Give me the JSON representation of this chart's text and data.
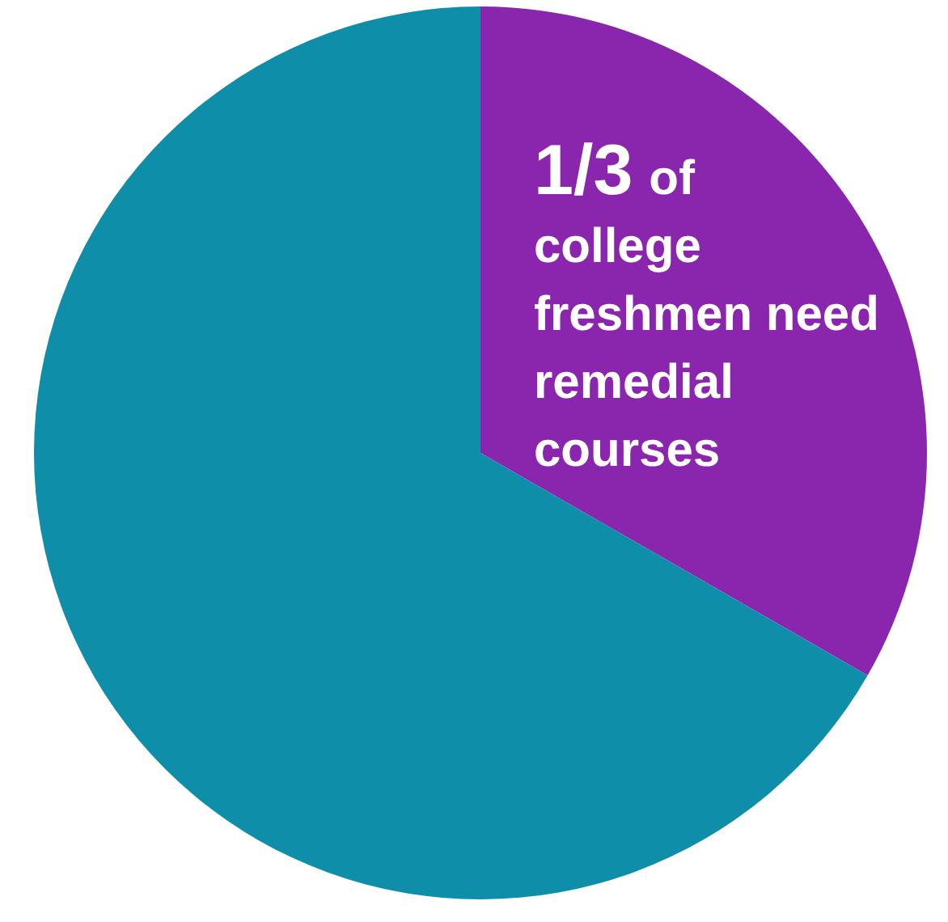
{
  "chart_data": {
    "type": "pie",
    "categories": [
      null,
      null
    ],
    "values": [
      33.3,
      66.7
    ],
    "colors": [
      "#8a25ae",
      "#0e8ea8"
    ],
    "annotations": [
      "1/3 of college freshmen need remedial courses"
    ]
  }
}
